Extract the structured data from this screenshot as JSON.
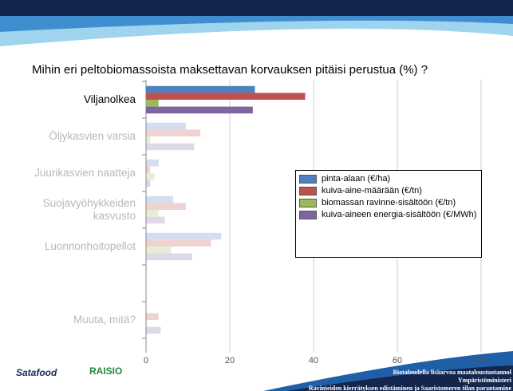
{
  "chart_data": {
    "type": "barh",
    "title": "Mihin eri peltobiomassoista maksettavan korvauksen pitäisi perustua (%) ?",
    "categories": [
      "Viljanolkea",
      "Öljykasvien varsia",
      "Juurikasvien naatteja",
      "Suojavyöhykkeiden kasvusto",
      "Luonnonhoitopellot",
      null,
      "Muuta, mitä?"
    ],
    "series": [
      {
        "name": "pinta-alaan (€/ha)",
        "color": "#4f81bd",
        "values": [
          26,
          9.5,
          3,
          6.5,
          18,
          null,
          0
        ]
      },
      {
        "name": "kuiva-aine-määrään (€/tn)",
        "color": "#c0504d",
        "values": [
          38,
          13,
          1,
          9.5,
          15.5,
          null,
          3
        ]
      },
      {
        "name": "biomassan ravinne-sisältöön (€/tn)",
        "color": "#9bbb59",
        "values": [
          3,
          1,
          2,
          3,
          6,
          null,
          0
        ]
      },
      {
        "name": "kuiva-aineen energia-sisältöön (€/MWh)",
        "color": "#8064a2",
        "values": [
          25.5,
          11.5,
          1,
          4.5,
          11,
          null,
          3.5
        ]
      }
    ],
    "highlighted_category": "Viljanolkea",
    "xlim": [
      0,
      80
    ],
    "xticks": [
      0,
      20,
      40,
      60,
      80
    ],
    "grid": true,
    "legend": "right"
  },
  "footer": {
    "logos": [
      "Satafood",
      "RAISIO"
    ],
    "lines": [
      "Biotaloudella lisäarvoa maataloustuotannol",
      "Ympäristöministeri",
      "Ravinteiden kierrätyksen edistäminen ja Saaristomeren tilan parantamine"
    ]
  }
}
